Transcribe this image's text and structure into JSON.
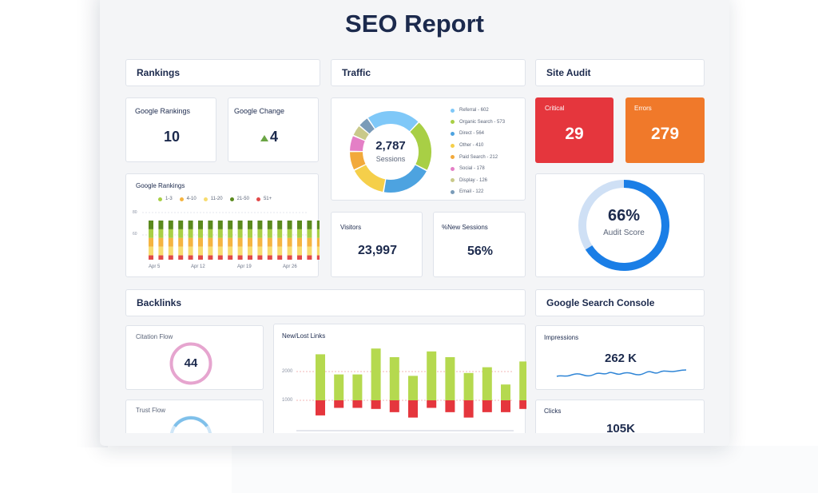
{
  "title": "SEO Report",
  "sections": {
    "rankings": "Rankings",
    "traffic": "Traffic",
    "site_audit": "Site Audit",
    "backlinks": "Backlinks",
    "gsc": "Google Search Console"
  },
  "rankings": {
    "google_rankings_label": "Google Rankings",
    "google_rankings_value": "10",
    "google_change_label": "Google Change",
    "google_change_value": "4",
    "chart_title": "Google Rankings",
    "legend": [
      {
        "label": "1-3",
        "color": "#a8cf45"
      },
      {
        "label": "4-10",
        "color": "#f5b440"
      },
      {
        "label": "11-20",
        "color": "#f7dc6f"
      },
      {
        "label": "21-50",
        "color": "#5b8a1e"
      },
      {
        "label": "51+",
        "color": "#e24a4a"
      }
    ],
    "x_labels": [
      "Apr 5",
      "Apr 12",
      "Apr 19",
      "Apr 26"
    ],
    "y_labels": [
      "80",
      "60"
    ]
  },
  "traffic": {
    "sessions_value": "2,787",
    "sessions_label": "Sessions",
    "legend": [
      {
        "label": "Referral - 602",
        "color": "#7fc8f8",
        "value": 602
      },
      {
        "label": "Organic Search - 573",
        "color": "#a8cf45",
        "value": 573
      },
      {
        "label": "Direct - 564",
        "color": "#4da3e0",
        "value": 564
      },
      {
        "label": "Other - 410",
        "color": "#f5cf4a",
        "value": 410
      },
      {
        "label": "Paid Search - 212",
        "color": "#f2a93b",
        "value": 212
      },
      {
        "label": "Social - 178",
        "color": "#e47fc6",
        "value": 178
      },
      {
        "label": "Display - 126",
        "color": "#c9c98a",
        "value": 126
      },
      {
        "label": "Email - 122",
        "color": "#7a9bb8",
        "value": 122
      }
    ],
    "visitors_label": "Visitors",
    "visitors_value": "23,997",
    "new_sessions_label": "%New Sessions",
    "new_sessions_value": "56%"
  },
  "site_audit": {
    "critical_label": "Critical",
    "critical_value": "29",
    "critical_color": "#e5363d",
    "errors_label": "Errors",
    "errors_value": "279",
    "errors_color": "#f0792a",
    "score_value": "66%",
    "score_label": "Audit Score",
    "score_fraction": 0.66
  },
  "backlinks": {
    "citation_flow_label": "Citation Flow",
    "citation_flow_value": "44",
    "trust_flow_label": "Trust Flow",
    "trust_flow_value": "",
    "new_lost_label": "New/Lost Links",
    "y_labels": [
      "2000",
      "1000"
    ]
  },
  "gsc": {
    "impressions_label": "Impressions",
    "impressions_value": "262 K",
    "clicks_label": "Clicks",
    "clicks_value": "105K"
  },
  "chart_data": [
    {
      "type": "bar",
      "title": "Google Rankings",
      "stacked": true,
      "series": [
        {
          "name": "1-3",
          "values": [
            8,
            8,
            8,
            8,
            8,
            8,
            8,
            8,
            8,
            8,
            8,
            8,
            8,
            8,
            8,
            8,
            8,
            8
          ]
        },
        {
          "name": "4-10",
          "values": [
            8,
            8,
            8,
            8,
            8,
            8,
            8,
            8,
            8,
            8,
            8,
            8,
            8,
            8,
            8,
            8,
            8,
            8
          ]
        },
        {
          "name": "11-20",
          "values": [
            8,
            8,
            8,
            8,
            8,
            8,
            8,
            8,
            8,
            8,
            8,
            8,
            8,
            8,
            8,
            8,
            8,
            8
          ]
        },
        {
          "name": "21-50",
          "values": [
            8,
            8,
            8,
            8,
            8,
            8,
            8,
            8,
            8,
            8,
            8,
            8,
            8,
            8,
            8,
            8,
            8,
            8
          ]
        },
        {
          "name": "51+",
          "values": [
            4,
            4,
            4,
            4,
            4,
            4,
            4,
            4,
            4,
            4,
            4,
            4,
            4,
            4,
            4,
            4,
            4,
            4
          ]
        }
      ],
      "x_labels": [
        "Apr 5",
        "Apr 12",
        "Apr 19",
        "Apr 26"
      ]
    },
    {
      "type": "bar",
      "title": "New/Lost Links",
      "series": [
        {
          "name": "New",
          "color": "#b5d94f",
          "values": [
            1600,
            900,
            900,
            1800,
            1500,
            850,
            1700,
            1500,
            950,
            1150,
            550,
            1350
          ]
        },
        {
          "name": "Lost",
          "color": "#e5363d",
          "values": [
            -700,
            -350,
            -350,
            -400,
            -550,
            -800,
            -350,
            -550,
            -800,
            -550,
            -550,
            -400
          ]
        }
      ],
      "ylim": [
        -1000,
        2000
      ],
      "y_labels": [
        "2000",
        "1000"
      ]
    }
  ]
}
